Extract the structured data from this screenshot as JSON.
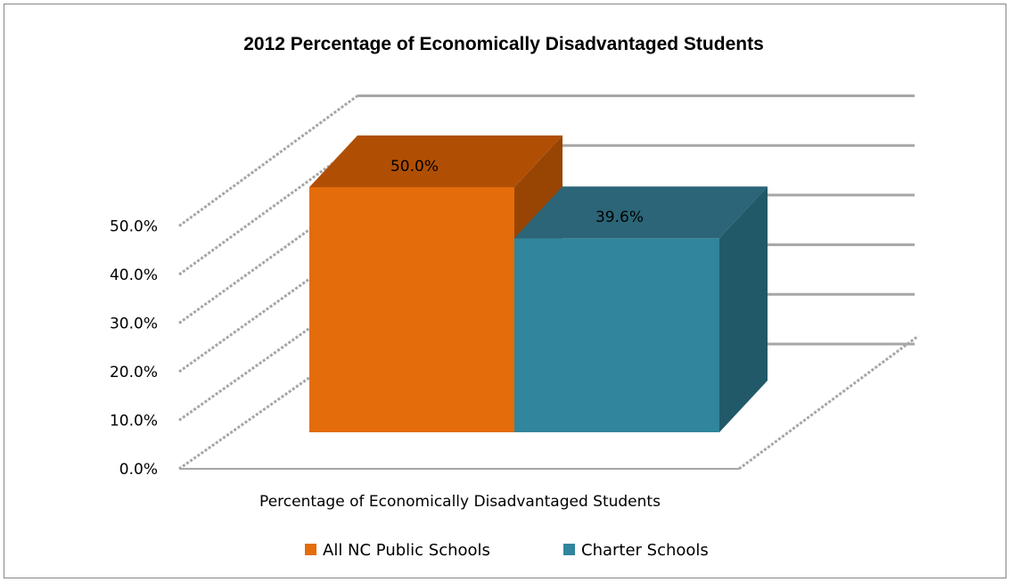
{
  "chart_data": {
    "type": "bar",
    "title": "2012  Percentage of Economically Disadvantaged Students",
    "categories": [
      "Percentage of Economically Disadvantaged Students"
    ],
    "series": [
      {
        "name": "All NC Public Schools",
        "values": [
          50.0
        ],
        "label": "50.0%",
        "color": "#E46C0A",
        "top_color": "#B04F04",
        "side_color": "#984503"
      },
      {
        "name": "Charter Schools",
        "values": [
          39.6
        ],
        "label": "39.6%",
        "color": "#31859C",
        "top_color": "#2B6577",
        "side_color": "#215968"
      }
    ],
    "ylim": [
      0,
      50
    ],
    "yticks": [
      "0.0%",
      "10.0%",
      "20.0%",
      "30.0%",
      "40.0%",
      "50.0%"
    ],
    "grid": true,
    "projection": "3d",
    "legend_position": "bottom"
  }
}
